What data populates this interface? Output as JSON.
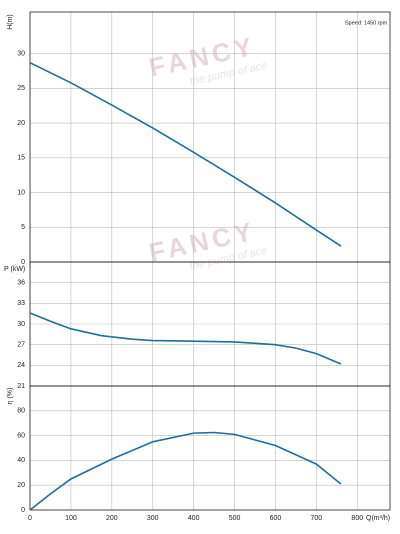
{
  "watermark": {
    "brand": "FANCY",
    "tagline": "the pump of ace"
  },
  "chart_data": [
    {
      "type": "line",
      "y_label": "H(m)",
      "annotation": "Speed: 1450 rpm",
      "color": "#1f6e9c",
      "x": [
        0,
        100,
        200,
        300,
        400,
        500,
        600,
        700,
        760
      ],
      "values": [
        28.7,
        25.8,
        22.6,
        19.3,
        15.8,
        12.2,
        8.5,
        4.6,
        2.3
      ],
      "xlim": [
        0,
        880
      ],
      "ylim": [
        0,
        36
      ],
      "xticks": [
        0,
        100,
        200,
        300,
        400,
        500,
        600,
        700,
        800
      ],
      "yticks": [
        0,
        5,
        10,
        15,
        20,
        25,
        30
      ],
      "grid": true
    },
    {
      "type": "line",
      "y_label": "P (kW)",
      "color": "#1f6e9c",
      "x": [
        0,
        50,
        100,
        175,
        250,
        300,
        400,
        500,
        600,
        650,
        700,
        760
      ],
      "values": [
        31.6,
        30.4,
        29.3,
        28.3,
        27.8,
        27.6,
        27.5,
        27.4,
        27.0,
        26.5,
        25.7,
        24.2
      ],
      "xlim": [
        0,
        880
      ],
      "ylim": [
        21,
        39
      ],
      "xticks": [
        0,
        100,
        200,
        300,
        400,
        500,
        600,
        700,
        800
      ],
      "yticks": [
        21,
        24,
        27,
        30,
        33,
        36
      ],
      "grid": true
    },
    {
      "type": "line",
      "y_label": "η (%)",
      "x_label": "Q(m³/h)",
      "color": "#1f6e9c",
      "x": [
        0,
        50,
        100,
        200,
        300,
        400,
        450,
        500,
        600,
        700,
        760
      ],
      "values": [
        0,
        13,
        25,
        41,
        55,
        62,
        62.5,
        61,
        52,
        37,
        21
      ],
      "xlim": [
        0,
        880
      ],
      "ylim": [
        0,
        100
      ],
      "xticks": [
        0,
        100,
        200,
        300,
        400,
        500,
        600,
        700,
        800
      ],
      "yticks": [
        0,
        20,
        40,
        60,
        80
      ],
      "grid": true
    }
  ]
}
